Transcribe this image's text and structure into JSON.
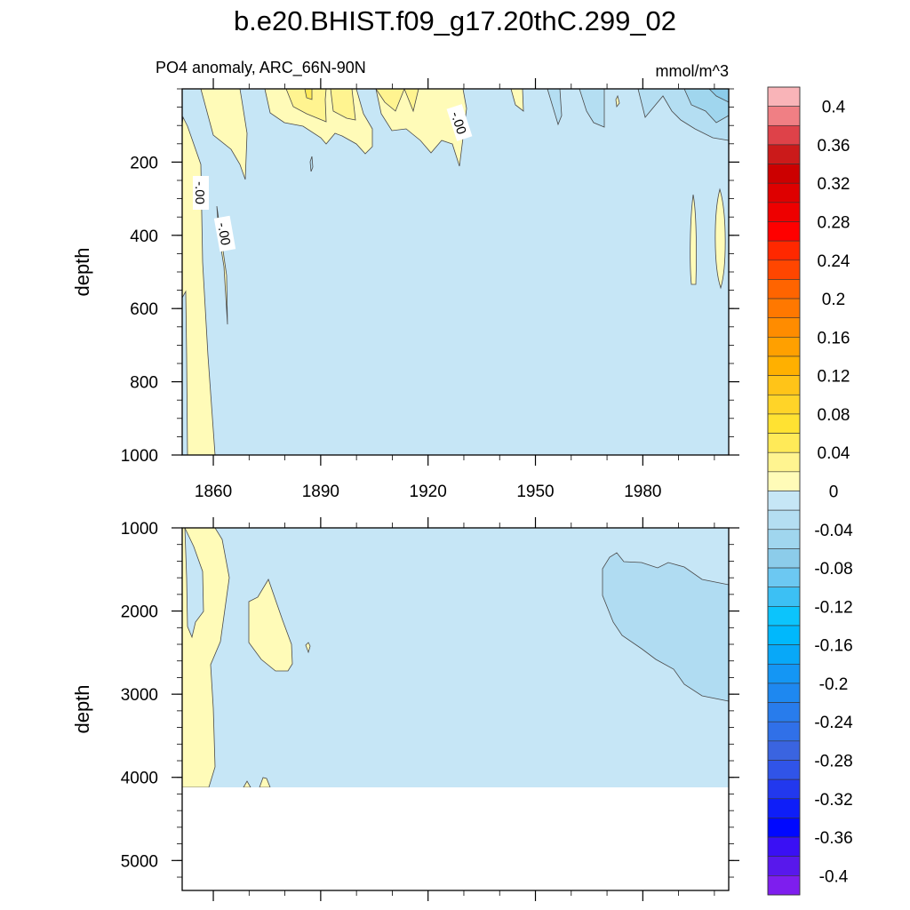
{
  "chart_data": {
    "type": "heatmap",
    "subtype": "filled-contour",
    "title": "b.e20.BHIST.f09_g17.20thC.299_02",
    "left_string": "PO4 anomaly, ARC_66N-90N",
    "right_string": "mmol/m^3",
    "ylabel": "depth",
    "x_tick_labels": [
      "1860",
      "1890",
      "1920",
      "1950",
      "1980"
    ],
    "x_ticks": [
      1860,
      1890,
      1920,
      1950,
      1980
    ],
    "x_minor_step": 10,
    "xlim": [
      1851.3,
      2004
    ],
    "panels": [
      {
        "name": "upper",
        "ylim": [
          0,
          1000
        ],
        "y_ticks": [
          200,
          400,
          600,
          800,
          1000
        ],
        "y_tick_labels": [
          "200",
          "400",
          "600",
          "800",
          "1000"
        ],
        "y_minor_step": 50,
        "data_max_depth": 1000
      },
      {
        "name": "lower",
        "ylim": [
          1000,
          5360
        ],
        "y_ticks": [
          1000,
          2000,
          3000,
          4000,
          5000
        ],
        "y_tick_labels": [
          "1000",
          "2000",
          "3000",
          "4000",
          "5000"
        ],
        "y_minor_step": 200,
        "data_max_depth": 4120
      }
    ],
    "contour_line_labels": [
      "-.00",
      "-.00",
      "-.00"
    ],
    "colorbar": {
      "levels_min": -0.4,
      "levels_max": 0.4,
      "level_step": 0.02,
      "labels": [
        "0.4",
        "0.36",
        "0.32",
        "0.28",
        "0.24",
        "0.2",
        "0.16",
        "0.12",
        "0.08",
        "0.04",
        "0",
        "-0.04",
        "-0.08",
        "-0.12",
        "-0.16",
        "-0.2",
        "-0.24",
        "-0.28",
        "-0.32",
        "-0.36",
        "-0.4"
      ],
      "colors_top_to_bottom": [
        "#F9B4B8",
        "#F07F84",
        "#DE4249",
        "#CB1A1A",
        "#CC0000",
        "#DE0000",
        "#EE0000",
        "#FF0000",
        "#FF2800",
        "#FF4600",
        "#FF6400",
        "#FF7800",
        "#FF8C00",
        "#FFA000",
        "#FFB000",
        "#FFC418",
        "#FFD428",
        "#FFE232",
        "#FFEA58",
        "#FFF490",
        "#FFFBB8",
        "#C6E6F6",
        "#B4DEF2",
        "#A0D6EE",
        "#8CCCEA",
        "#6CC8F2",
        "#3CC0F4",
        "#0CC4FC",
        "#00B8FC",
        "#08A8F8",
        "#1496F4",
        "#1E88F0",
        "#287CEC",
        "#3070E8",
        "#3A64E0",
        "#3054E8",
        "#2238EE",
        "#0E1EF8",
        "#0008FF",
        "#3A10F4",
        "#5818EC",
        "#7E1EEE"
      ]
    }
  }
}
